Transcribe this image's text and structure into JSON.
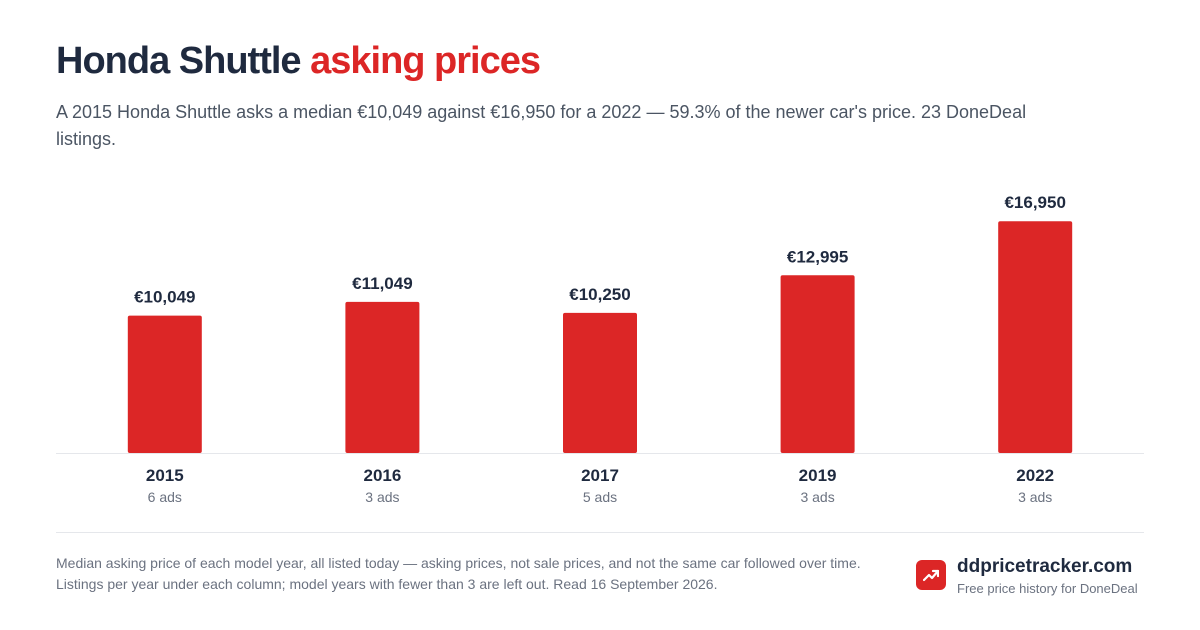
{
  "header": {
    "title_main": "Honda Shuttle",
    "title_accent": "asking prices",
    "subtitle": "A 2015 Honda Shuttle asks a median €10,049 against €16,950 for a 2022 — 59.3% of the newer car's price. 23 DoneDeal listings."
  },
  "chart_data": {
    "type": "bar",
    "categories": [
      "2015",
      "2016",
      "2017",
      "2019",
      "2022"
    ],
    "values": [
      10049,
      11049,
      10250,
      12995,
      16950
    ],
    "value_labels": [
      "€10,049",
      "€11,049",
      "€10,250",
      "€12,995",
      "€16,950"
    ],
    "sublabels": [
      "6 ads",
      "3 ads",
      "5 ads",
      "3 ads",
      "3 ads"
    ],
    "ylim": [
      0,
      18500
    ],
    "grid": false,
    "bar_color": "#dc2626"
  },
  "footer": {
    "note": "Median asking price of each model year, all listed today — asking prices, not sale prices, and not the same car followed over time. Listings per year under each column; model years with fewer than 3 are left out. Read 16 September 2026.",
    "brand_icon": "trend-up-icon",
    "brand_name": "ddpricetracker.com",
    "brand_tagline": "Free price history for DoneDeal"
  },
  "colors": {
    "accent": "#dc2626",
    "title": "#1f2a3f",
    "muted": "#6b7280"
  }
}
